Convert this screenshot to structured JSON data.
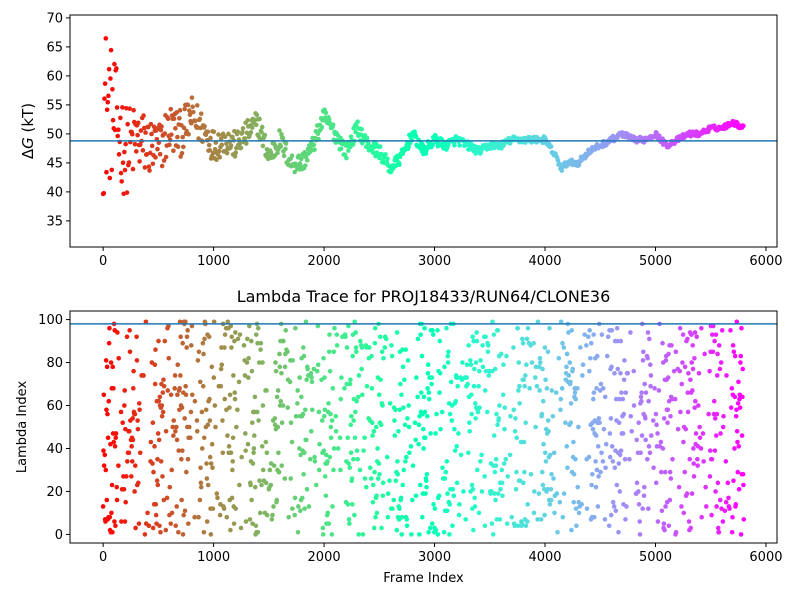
{
  "chart_data": [
    {
      "type": "scatter",
      "title": "",
      "xlabel": "",
      "ylabel_prefix": "Δ",
      "ylabel_var": "G",
      "ylabel_suffix": " (kT)",
      "xlim": [
        -300,
        6100
      ],
      "ylim": [
        30.5,
        70.5
      ],
      "xticks": [
        0,
        1000,
        2000,
        3000,
        4000,
        5000,
        6000
      ],
      "xticklabels": [
        "0",
        "1000",
        "2000",
        "3000",
        "4000",
        "5000",
        "6000"
      ],
      "yticks": [
        35,
        40,
        45,
        50,
        55,
        60,
        65,
        70
      ],
      "yticklabels": [
        "35",
        "40",
        "45",
        "50",
        "55",
        "60",
        "65",
        "70"
      ],
      "hline": {
        "y": 48.8,
        "color": "#1f77b4"
      },
      "colormap": "rainbow (red → violet with frame index)",
      "frames": 5800,
      "trend": {
        "x": [
          0,
          100,
          200,
          300,
          400,
          500,
          600,
          700,
          800,
          900,
          1000,
          1100,
          1200,
          1300,
          1400,
          1500,
          1600,
          1700,
          1800,
          1900,
          2000,
          2100,
          2200,
          2300,
          2400,
          2500,
          2600,
          2700,
          2800,
          2900,
          3000,
          3100,
          3200,
          3300,
          3400,
          3500,
          3600,
          3700,
          3800,
          3900,
          4000,
          4100,
          4150,
          4200,
          4300,
          4400,
          4500,
          4600,
          4700,
          4800,
          4900,
          5000,
          5100,
          5200,
          5300,
          5400,
          5500,
          5600,
          5700,
          5800
        ],
        "y": [
          55,
          53,
          47,
          49,
          48,
          47,
          51,
          50,
          53,
          51,
          48,
          49,
          48,
          50,
          52,
          46,
          49,
          45,
          45,
          48,
          53,
          50,
          47,
          51,
          48,
          47,
          44,
          46,
          50,
          47,
          49,
          48,
          49,
          48,
          47,
          48,
          48,
          49,
          49,
          49,
          49,
          46,
          44,
          45,
          45,
          47,
          48,
          49,
          50,
          49,
          49,
          50,
          48,
          49,
          50,
          50,
          51,
          51,
          52,
          51
        ]
      },
      "spread": {
        "x": [
          0,
          100,
          200,
          300,
          500,
          800,
          1100,
          1500,
          2000,
          2800,
          3500,
          5800
        ],
        "amplitude": [
          16,
          10,
          8,
          6,
          5,
          3.5,
          2.5,
          2,
          1.5,
          1,
          0.6,
          0.4
        ]
      }
    },
    {
      "type": "scatter",
      "title": "Lambda Trace for PROJ18433/RUN64/CLONE36",
      "xlabel": "Frame Index",
      "ylabel": "Lambda Index",
      "xlim": [
        -300,
        6100
      ],
      "ylim": [
        -4,
        104
      ],
      "xticks": [
        0,
        1000,
        2000,
        3000,
        4000,
        5000,
        6000
      ],
      "xticklabels": [
        "0",
        "1000",
        "2000",
        "3000",
        "4000",
        "5000",
        "6000"
      ],
      "yticks": [
        0,
        20,
        40,
        60,
        80,
        100
      ],
      "yticklabels": [
        "0",
        "20",
        "40",
        "60",
        "80",
        "100"
      ],
      "hline": {
        "y": 98,
        "color": "#1f77b4"
      },
      "colormap": "rainbow (red → violet with frame index)",
      "frames": 5800,
      "lambda_range": [
        0,
        99
      ]
    }
  ]
}
